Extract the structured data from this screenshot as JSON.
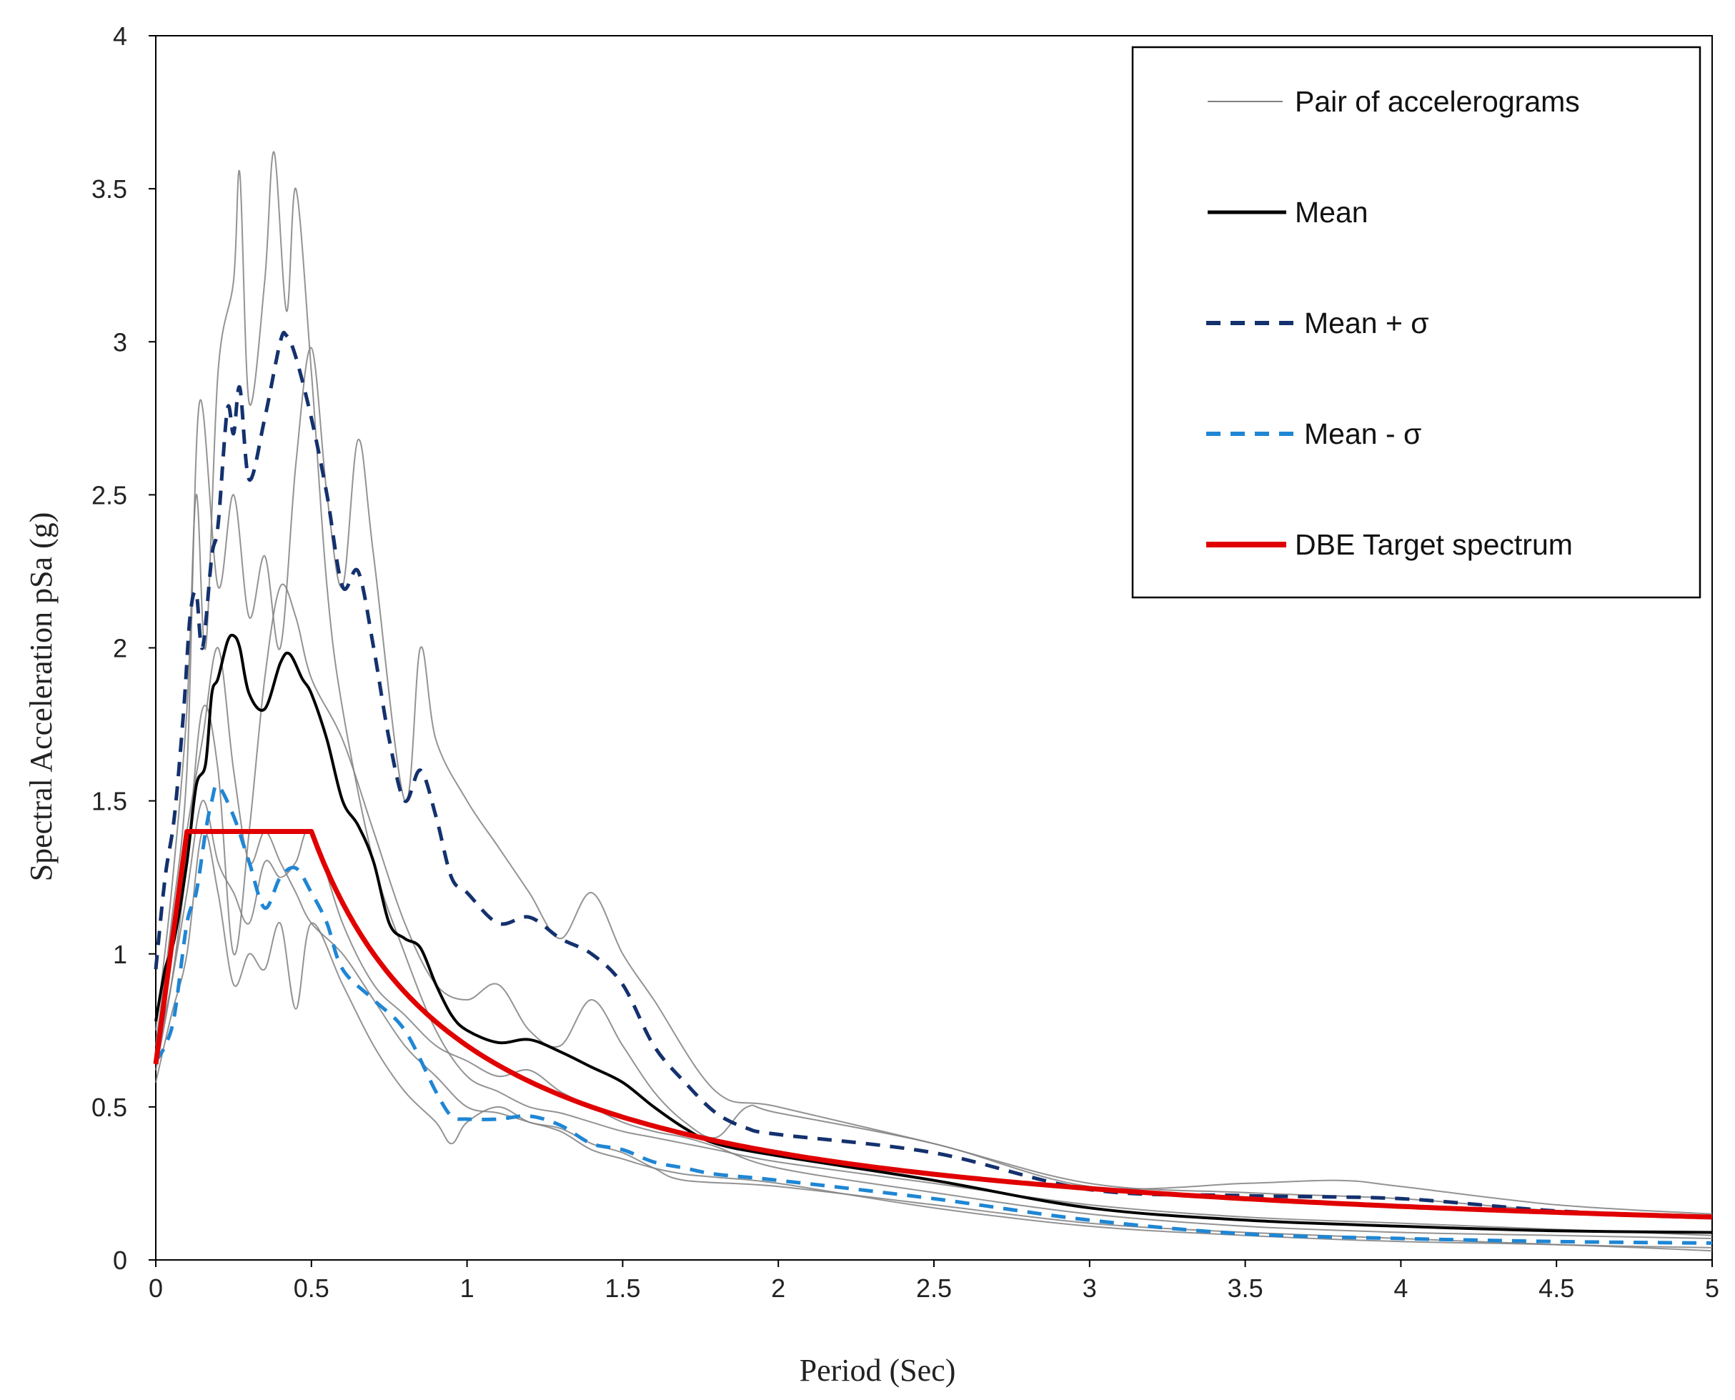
{
  "chart_data": {
    "type": "line",
    "title": "",
    "xlabel": "Period (Sec)",
    "ylabel": "Spectral Acceleration pSa (g)",
    "xlim": [
      0,
      5
    ],
    "ylim": [
      0,
      4
    ],
    "xticks": [
      "0",
      "0.5",
      "1",
      "1.5",
      "2",
      "2.5",
      "3",
      "3.5",
      "4",
      "4.5",
      "5"
    ],
    "yticks": [
      "0",
      "0.5",
      "1",
      "1.5",
      "2",
      "2.5",
      "3",
      "3.5",
      "4"
    ],
    "grid": false,
    "legend_position": "top-right",
    "legend": [
      {
        "name": "Pair of accelerograms",
        "color": "#808080",
        "style": "thin-solid"
      },
      {
        "name": "Mean",
        "color": "#000000",
        "style": "solid"
      },
      {
        "name": "Mean + σ",
        "color": "#14316e",
        "style": "dashed"
      },
      {
        "name": "Mean - σ",
        "color": "#1f86d4",
        "style": "dashed"
      },
      {
        "name": "DBE Target spectrum",
        "color": "#e00000",
        "style": "thick-solid"
      }
    ],
    "series": [
      {
        "name": "Pair of accelerograms 1",
        "group": "accelerograms",
        "color": "#808080",
        "x": [
          0,
          0.05,
          0.1,
          0.13,
          0.16,
          0.2,
          0.25,
          0.27,
          0.3,
          0.35,
          0.38,
          0.42,
          0.45,
          0.5,
          0.55,
          0.6,
          0.7,
          0.8,
          0.9,
          1.0,
          1.1,
          1.2,
          1.3,
          1.4,
          1.5,
          1.6,
          1.7,
          1.8,
          2.0,
          2.5,
          3.0,
          3.5,
          4.0,
          4.5,
          5.0
        ],
        "y": [
          0.75,
          1.2,
          1.8,
          2.5,
          2.0,
          2.9,
          3.2,
          3.55,
          2.8,
          3.2,
          3.62,
          3.1,
          3.5,
          2.9,
          2.2,
          1.8,
          1.3,
          1.0,
          0.75,
          0.6,
          0.55,
          0.5,
          0.48,
          0.45,
          0.42,
          0.4,
          0.38,
          0.36,
          0.32,
          0.25,
          0.18,
          0.14,
          0.12,
          0.1,
          0.08
        ]
      },
      {
        "name": "Pair of accelerograms 2",
        "group": "accelerograms",
        "color": "#808080",
        "x": [
          0,
          0.05,
          0.1,
          0.14,
          0.2,
          0.25,
          0.3,
          0.35,
          0.4,
          0.45,
          0.5,
          0.55,
          0.6,
          0.65,
          0.7,
          0.8,
          0.85,
          0.9,
          1.0,
          1.1,
          1.2,
          1.3,
          1.4,
          1.5,
          1.6,
          1.8,
          2.0,
          2.5,
          3.0,
          3.5,
          4.0,
          4.5,
          5.0
        ],
        "y": [
          0.7,
          1.1,
          1.6,
          2.8,
          2.2,
          2.5,
          2.1,
          2.3,
          2.0,
          2.6,
          2.98,
          2.5,
          2.2,
          2.68,
          2.3,
          1.5,
          2.0,
          1.7,
          1.5,
          1.35,
          1.2,
          1.05,
          1.2,
          1.0,
          0.85,
          0.55,
          0.5,
          0.38,
          0.25,
          0.22,
          0.2,
          0.16,
          0.14
        ]
      },
      {
        "name": "Pair of accelerograms 3",
        "group": "accelerograms",
        "color": "#808080",
        "x": [
          0,
          0.05,
          0.1,
          0.15,
          0.2,
          0.25,
          0.3,
          0.35,
          0.4,
          0.45,
          0.5,
          0.6,
          0.7,
          0.8,
          0.9,
          1.0,
          1.1,
          1.2,
          1.3,
          1.4,
          1.5,
          1.6,
          1.7,
          1.8,
          1.9,
          2.0,
          2.5,
          3.0,
          3.5,
          3.8,
          4.0,
          4.5,
          5.0
        ],
        "y": [
          0.62,
          0.9,
          1.3,
          1.8,
          1.6,
          1.0,
          1.4,
          1.9,
          2.2,
          2.1,
          1.9,
          1.7,
          1.4,
          1.1,
          0.9,
          0.85,
          0.9,
          0.75,
          0.7,
          0.85,
          0.7,
          0.55,
          0.45,
          0.4,
          0.5,
          0.48,
          0.38,
          0.24,
          0.25,
          0.26,
          0.24,
          0.18,
          0.15
        ]
      },
      {
        "name": "Pair of accelerograms 4",
        "group": "accelerograms",
        "color": "#808080",
        "x": [
          0,
          0.05,
          0.1,
          0.15,
          0.2,
          0.25,
          0.3,
          0.35,
          0.4,
          0.45,
          0.5,
          0.6,
          0.7,
          0.8,
          0.9,
          0.95,
          1.0,
          1.1,
          1.2,
          1.3,
          1.4,
          1.5,
          1.6,
          1.7,
          2.0,
          2.5,
          3.0,
          3.5,
          4.0,
          4.5,
          5.0
        ],
        "y": [
          0.58,
          0.8,
          1.0,
          1.4,
          1.2,
          0.9,
          1.0,
          0.95,
          1.1,
          0.82,
          1.1,
          0.9,
          0.7,
          0.55,
          0.45,
          0.38,
          0.45,
          0.5,
          0.45,
          0.43,
          0.38,
          0.35,
          0.3,
          0.26,
          0.24,
          0.18,
          0.12,
          0.09,
          0.07,
          0.05,
          0.04
        ]
      },
      {
        "name": "Pair of accelerograms 5",
        "group": "accelerograms",
        "color": "#808080",
        "x": [
          0,
          0.05,
          0.1,
          0.15,
          0.2,
          0.25,
          0.3,
          0.35,
          0.4,
          0.45,
          0.5,
          0.6,
          0.7,
          0.8,
          0.9,
          1.0,
          1.1,
          1.2,
          1.3,
          1.4,
          1.5,
          1.6,
          1.7,
          1.8,
          2.0,
          2.5,
          3.0,
          3.5,
          4.0,
          4.5,
          5.0
        ],
        "y": [
          0.65,
          1.0,
          1.4,
          1.7,
          2.0,
          1.6,
          1.3,
          1.4,
          1.3,
          1.2,
          1.1,
          1.0,
          0.85,
          0.7,
          0.6,
          0.5,
          0.48,
          0.45,
          0.42,
          0.36,
          0.33,
          0.3,
          0.28,
          0.27,
          0.25,
          0.17,
          0.11,
          0.08,
          0.06,
          0.05,
          0.03
        ]
      },
      {
        "name": "Pair of accelerograms 6",
        "group": "accelerograms",
        "color": "#808080",
        "x": [
          0,
          0.05,
          0.1,
          0.15,
          0.2,
          0.25,
          0.3,
          0.35,
          0.4,
          0.45,
          0.5,
          0.6,
          0.7,
          0.8,
          0.9,
          1.0,
          1.1,
          1.2,
          1.3,
          1.4,
          1.5,
          1.6,
          1.7,
          1.8,
          2.0,
          2.5,
          3.0,
          3.5,
          4.0,
          4.5,
          5.0
        ],
        "y": [
          0.66,
          0.9,
          1.2,
          1.5,
          1.3,
          1.2,
          1.1,
          1.3,
          1.25,
          1.3,
          1.4,
          1.1,
          0.9,
          0.8,
          0.7,
          0.65,
          0.6,
          0.62,
          0.55,
          0.5,
          0.45,
          0.42,
          0.4,
          0.37,
          0.3,
          0.22,
          0.15,
          0.11,
          0.09,
          0.08,
          0.07
        ]
      },
      {
        "name": "Mean",
        "color": "#000000",
        "width": 4,
        "x": [
          0,
          0.03,
          0.06,
          0.1,
          0.13,
          0.16,
          0.18,
          0.2,
          0.23,
          0.25,
          0.27,
          0.3,
          0.35,
          0.4,
          0.43,
          0.47,
          0.5,
          0.55,
          0.6,
          0.65,
          0.7,
          0.75,
          0.8,
          0.85,
          0.9,
          0.95,
          1.0,
          1.1,
          1.2,
          1.3,
          1.4,
          1.5,
          1.6,
          1.7,
          1.8,
          2.0,
          2.5,
          3.0,
          3.5,
          4.0,
          4.5,
          5.0
        ],
        "y": [
          0.78,
          0.95,
          1.05,
          1.3,
          1.55,
          1.62,
          1.85,
          1.9,
          2.02,
          2.04,
          2.0,
          1.85,
          1.8,
          1.95,
          1.98,
          1.9,
          1.85,
          1.7,
          1.5,
          1.42,
          1.3,
          1.1,
          1.05,
          1.02,
          0.9,
          0.8,
          0.75,
          0.71,
          0.72,
          0.68,
          0.63,
          0.58,
          0.5,
          0.43,
          0.38,
          0.34,
          0.26,
          0.17,
          0.13,
          0.11,
          0.095,
          0.09
        ]
      },
      {
        "name": "Mean + σ",
        "color": "#14316e",
        "width": 5,
        "dash": "20 14",
        "x": [
          0,
          0.03,
          0.06,
          0.09,
          0.11,
          0.13,
          0.15,
          0.18,
          0.2,
          0.23,
          0.25,
          0.27,
          0.3,
          0.35,
          0.4,
          0.42,
          0.45,
          0.5,
          0.55,
          0.6,
          0.65,
          0.7,
          0.75,
          0.8,
          0.85,
          0.9,
          0.95,
          1.0,
          1.1,
          1.2,
          1.3,
          1.4,
          1.5,
          1.6,
          1.7,
          1.8,
          1.9,
          2.0,
          2.5,
          3.0,
          3.5,
          4.0,
          4.5,
          5.0
        ],
        "y": [
          0.95,
          1.25,
          1.45,
          1.8,
          2.1,
          2.18,
          2.0,
          2.3,
          2.4,
          2.78,
          2.7,
          2.85,
          2.55,
          2.75,
          3.0,
          3.02,
          2.95,
          2.75,
          2.5,
          2.2,
          2.25,
          2.0,
          1.7,
          1.5,
          1.6,
          1.45,
          1.25,
          1.2,
          1.1,
          1.12,
          1.05,
          1.0,
          0.9,
          0.7,
          0.58,
          0.48,
          0.43,
          0.41,
          0.35,
          0.23,
          0.21,
          0.2,
          0.16,
          0.14
        ]
      },
      {
        "name": "Mean - σ",
        "color": "#1f86d4",
        "width": 5,
        "dash": "20 14",
        "x": [
          0,
          0.03,
          0.06,
          0.1,
          0.13,
          0.16,
          0.18,
          0.2,
          0.25,
          0.3,
          0.35,
          0.4,
          0.45,
          0.5,
          0.55,
          0.6,
          0.7,
          0.8,
          0.9,
          0.95,
          1.0,
          1.1,
          1.2,
          1.3,
          1.4,
          1.5,
          1.6,
          1.7,
          1.8,
          2.0,
          2.5,
          3.0,
          3.5,
          4.0,
          4.5,
          5.0
        ],
        "y": [
          0.65,
          0.7,
          0.8,
          1.1,
          1.2,
          1.4,
          1.5,
          1.55,
          1.45,
          1.3,
          1.15,
          1.25,
          1.28,
          1.2,
          1.1,
          0.95,
          0.85,
          0.75,
          0.55,
          0.47,
          0.46,
          0.46,
          0.47,
          0.44,
          0.38,
          0.36,
          0.32,
          0.3,
          0.28,
          0.26,
          0.2,
          0.13,
          0.085,
          0.07,
          0.06,
          0.055
        ]
      },
      {
        "name": "DBE Target spectrum",
        "color": "#e00000",
        "width": 7,
        "function": "dbe",
        "x": [
          0,
          0.1,
          0.5,
          5
        ],
        "y": [
          0.64,
          1.4,
          1.4,
          0.14
        ]
      }
    ]
  }
}
